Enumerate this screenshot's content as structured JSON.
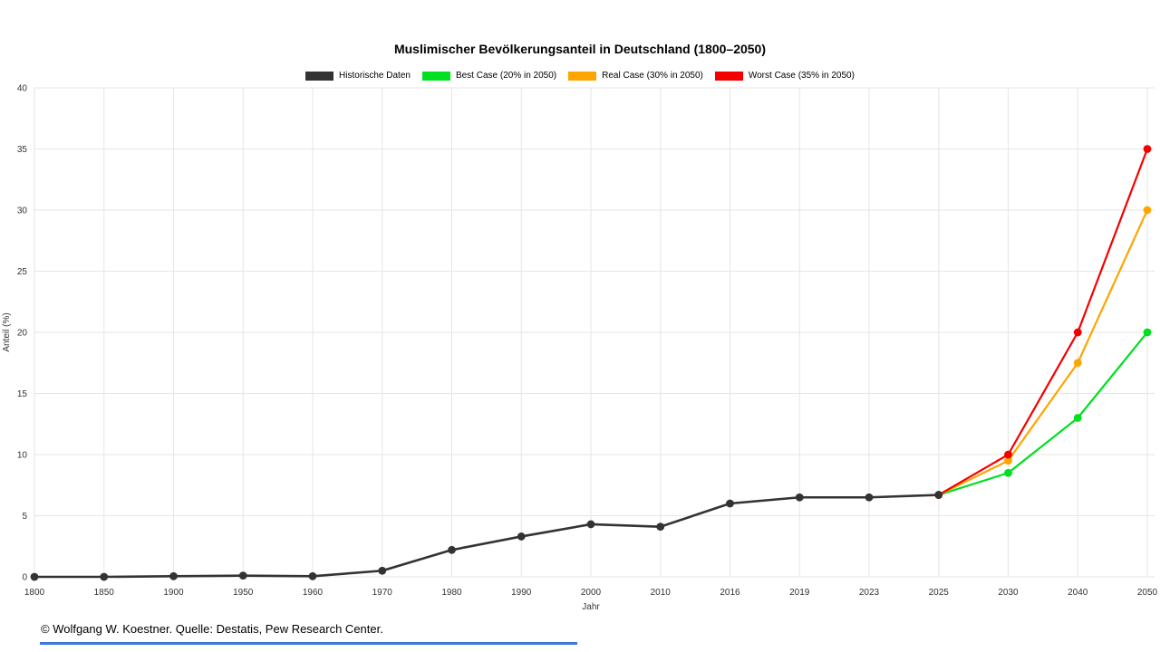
{
  "page": {
    "footer": "© Wolfgang W. Koestner. Quelle: Destatis, Pew Research Center.",
    "accent_bar_color": "#3c78dc"
  },
  "chart_data": {
    "type": "line",
    "title": "Muslimischer Bevölkerungsanteil in Deutschland (1800–2050)",
    "xlabel": "Jahr",
    "ylabel": "Anteil (%)",
    "ylim": [
      0,
      40
    ],
    "ytick_step": 5,
    "yticks": [
      0,
      5,
      10,
      15,
      20,
      25,
      30,
      35,
      40
    ],
    "grid": true,
    "legend_position": "top",
    "grid_color": "#e6e6e6",
    "tick_color": "#333333",
    "categories": [
      "1800",
      "1850",
      "1900",
      "1950",
      "1960",
      "1970",
      "1980",
      "1990",
      "2000",
      "2010",
      "2016",
      "2019",
      "2023",
      "2025",
      "2030",
      "2040",
      "2050"
    ],
    "series": [
      {
        "name": "Historische Daten",
        "color": "#333333",
        "values": [
          0,
          0,
          0.05,
          0.1,
          0.05,
          0.5,
          2.2,
          3.3,
          4.3,
          4.1,
          6.0,
          6.5,
          6.5,
          6.7,
          null,
          null,
          null
        ]
      },
      {
        "name": "Best Case (20% in 2050)",
        "color": "#00df20",
        "values": [
          null,
          null,
          null,
          null,
          null,
          null,
          null,
          null,
          null,
          null,
          null,
          null,
          null,
          6.7,
          8.5,
          13,
          20
        ]
      },
      {
        "name": "Real Case (30% in 2050)",
        "color": "#ffa500",
        "values": [
          null,
          null,
          null,
          null,
          null,
          null,
          null,
          null,
          null,
          null,
          null,
          null,
          null,
          6.7,
          9.5,
          17.5,
          30
        ]
      },
      {
        "name": "Worst Case (35% in 2050)",
        "color": "#f50000",
        "values": [
          null,
          null,
          null,
          null,
          null,
          null,
          null,
          null,
          null,
          null,
          null,
          null,
          null,
          6.7,
          10,
          20,
          35
        ]
      }
    ]
  }
}
